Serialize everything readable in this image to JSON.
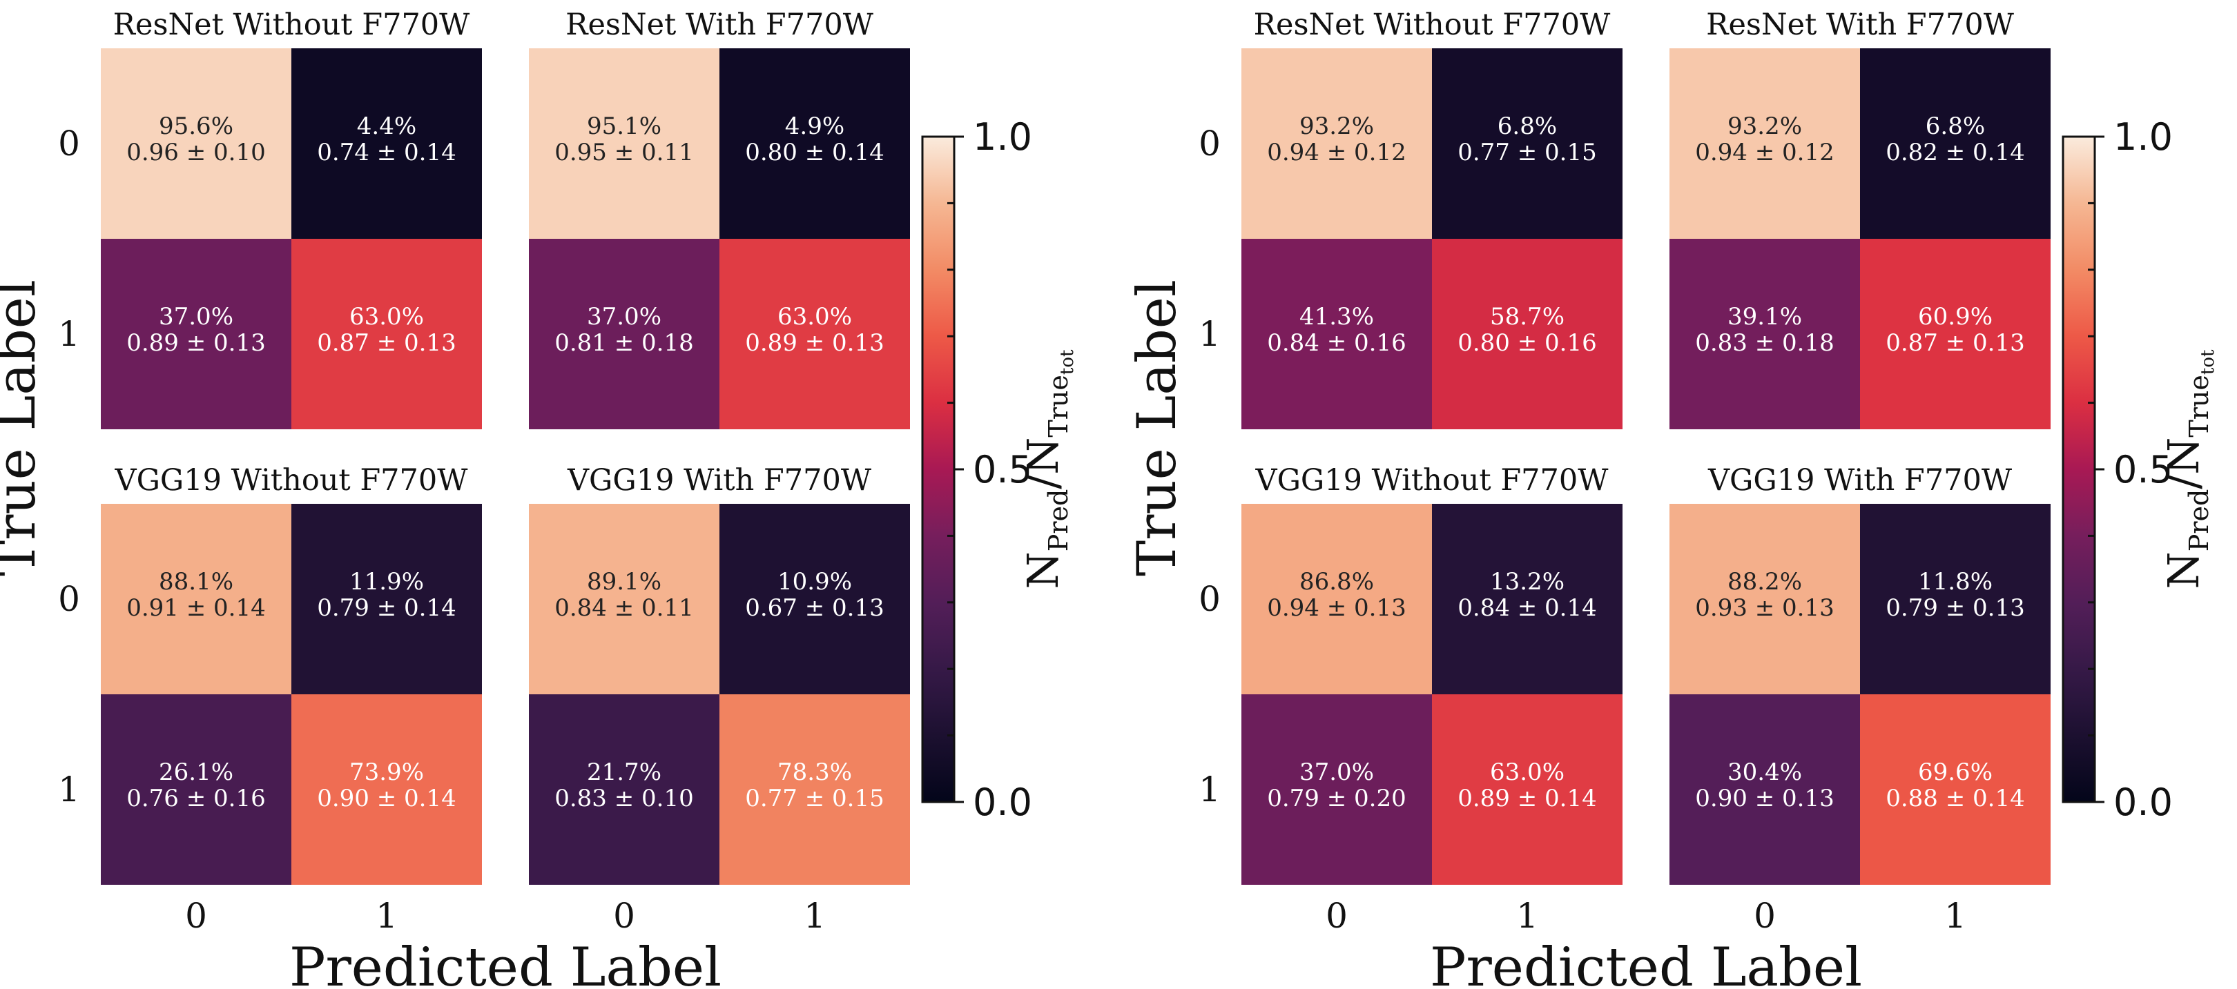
{
  "chart_data": {
    "type": "heatmap",
    "colorbar": {
      "label_main": "N",
      "label_sub1": "Pred",
      "label_slash": "/N",
      "label_sub2": "True",
      "label_sub3": "tot",
      "ticks": [
        "0.0",
        "0.5",
        "1.0"
      ],
      "range": [
        0,
        1
      ]
    },
    "xlabel": "Predicted Label",
    "ylabel": "True Label",
    "x_ticks": [
      "0",
      "1"
    ],
    "y_ticks": [
      "0",
      "1"
    ],
    "figures": [
      {
        "name": "left",
        "panels": [
          {
            "title": "ResNet Without F770W",
            "cells": [
              [
                {
                  "pct": "95.6%",
                  "val": "0.96 ± 0.10",
                  "frac": 0.956
                },
                {
                  "pct": "4.4%",
                  "val": "0.74 ± 0.14",
                  "frac": 0.044
                }
              ],
              [
                {
                  "pct": "37.0%",
                  "val": "0.89 ± 0.13",
                  "frac": 0.37
                },
                {
                  "pct": "63.0%",
                  "val": "0.87 ± 0.13",
                  "frac": 0.63
                }
              ]
            ]
          },
          {
            "title": "ResNet With F770W",
            "cells": [
              [
                {
                  "pct": "95.1%",
                  "val": "0.95 ± 0.11",
                  "frac": 0.951
                },
                {
                  "pct": "4.9%",
                  "val": "0.80 ± 0.14",
                  "frac": 0.049
                }
              ],
              [
                {
                  "pct": "37.0%",
                  "val": "0.81 ± 0.18",
                  "frac": 0.37
                },
                {
                  "pct": "63.0%",
                  "val": "0.89 ± 0.13",
                  "frac": 0.63
                }
              ]
            ]
          },
          {
            "title": "VGG19 Without F770W",
            "cells": [
              [
                {
                  "pct": "88.1%",
                  "val": "0.91 ± 0.14",
                  "frac": 0.881
                },
                {
                  "pct": "11.9%",
                  "val": "0.79 ± 0.14",
                  "frac": 0.119
                }
              ],
              [
                {
                  "pct": "26.1%",
                  "val": "0.76 ± 0.16",
                  "frac": 0.261
                },
                {
                  "pct": "73.9%",
                  "val": "0.90 ± 0.14",
                  "frac": 0.739
                }
              ]
            ]
          },
          {
            "title": "VGG19 With F770W",
            "cells": [
              [
                {
                  "pct": "89.1%",
                  "val": "0.84 ± 0.11",
                  "frac": 0.891
                },
                {
                  "pct": "10.9%",
                  "val": "0.67 ± 0.13",
                  "frac": 0.109
                }
              ],
              [
                {
                  "pct": "21.7%",
                  "val": "0.83 ± 0.10",
                  "frac": 0.217
                },
                {
                  "pct": "78.3%",
                  "val": "0.77 ± 0.15",
                  "frac": 0.783
                }
              ]
            ]
          }
        ]
      },
      {
        "name": "right",
        "panels": [
          {
            "title": "ResNet Without F770W",
            "cells": [
              [
                {
                  "pct": "93.2%",
                  "val": "0.94 ± 0.12",
                  "frac": 0.932
                },
                {
                  "pct": "6.8%",
                  "val": "0.77 ± 0.15",
                  "frac": 0.068
                }
              ],
              [
                {
                  "pct": "41.3%",
                  "val": "0.84 ± 0.16",
                  "frac": 0.413
                },
                {
                  "pct": "58.7%",
                  "val": "0.80 ± 0.16",
                  "frac": 0.587
                }
              ]
            ]
          },
          {
            "title": "ResNet With F770W",
            "cells": [
              [
                {
                  "pct": "93.2%",
                  "val": "0.94 ± 0.12",
                  "frac": 0.932
                },
                {
                  "pct": "6.8%",
                  "val": "0.82 ± 0.14",
                  "frac": 0.068
                }
              ],
              [
                {
                  "pct": "39.1%",
                  "val": "0.83 ± 0.18",
                  "frac": 0.391
                },
                {
                  "pct": "60.9%",
                  "val": "0.87 ± 0.13",
                  "frac": 0.609
                }
              ]
            ]
          },
          {
            "title": "VGG19 Without F770W",
            "cells": [
              [
                {
                  "pct": "86.8%",
                  "val": "0.94 ± 0.13",
                  "frac": 0.868
                },
                {
                  "pct": "13.2%",
                  "val": "0.84 ± 0.14",
                  "frac": 0.132
                }
              ],
              [
                {
                  "pct": "37.0%",
                  "val": "0.79 ± 0.20",
                  "frac": 0.37
                },
                {
                  "pct": "63.0%",
                  "val": "0.89 ± 0.14",
                  "frac": 0.63
                }
              ]
            ]
          },
          {
            "title": "VGG19 With F770W",
            "cells": [
              [
                {
                  "pct": "88.2%",
                  "val": "0.93 ± 0.13",
                  "frac": 0.882
                },
                {
                  "pct": "11.8%",
                  "val": "0.79 ± 0.13",
                  "frac": 0.118
                }
              ],
              [
                {
                  "pct": "30.4%",
                  "val": "0.90 ± 0.13",
                  "frac": 0.304
                },
                {
                  "pct": "69.6%",
                  "val": "0.88 ± 0.14",
                  "frac": 0.696
                }
              ]
            ]
          }
        ]
      }
    ]
  }
}
